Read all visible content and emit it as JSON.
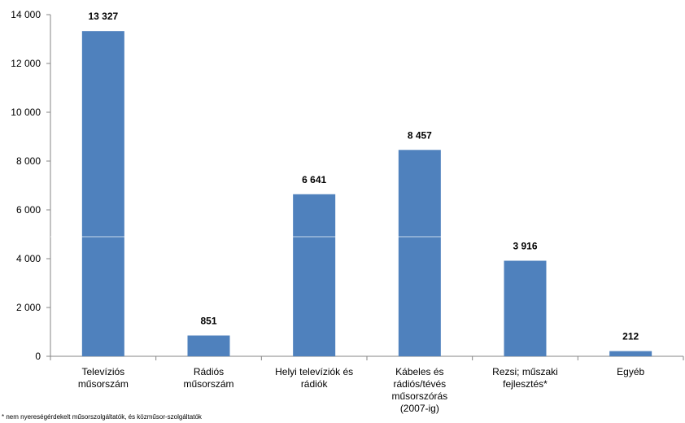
{
  "chart_data": {
    "type": "bar",
    "categories": [
      [
        "Televíziós",
        "műsorszám"
      ],
      [
        "Rádiós",
        "műsorszám"
      ],
      [
        "Helyi televíziók és",
        "rádiók"
      ],
      [
        "Kábeles és",
        "rádiós/tévés",
        "műsorszórás",
        "(2007-ig)"
      ],
      [
        "Rezsi; műszaki",
        "fejlesztés*"
      ],
      [
        "Egyéb"
      ]
    ],
    "values": [
      13327,
      851,
      6641,
      8457,
      3916,
      212
    ],
    "data_labels": [
      "13 327",
      "851",
      "6 641",
      "8 457",
      "3 916",
      "212"
    ],
    "ylim": [
      0,
      14000
    ],
    "yticks": [
      0,
      2000,
      4000,
      6000,
      8000,
      10000,
      12000,
      14000
    ],
    "ytick_labels": [
      "0",
      "2 000",
      "4 000",
      "6 000",
      "8 000",
      "10 000",
      "12 000",
      "14 000"
    ],
    "bar_color": "#4F81BD",
    "grid": false,
    "legend": "none"
  },
  "footnote": "* nem nyereségérdekelt műsorszolgáltatók, és közműsor-szolgáltatók"
}
